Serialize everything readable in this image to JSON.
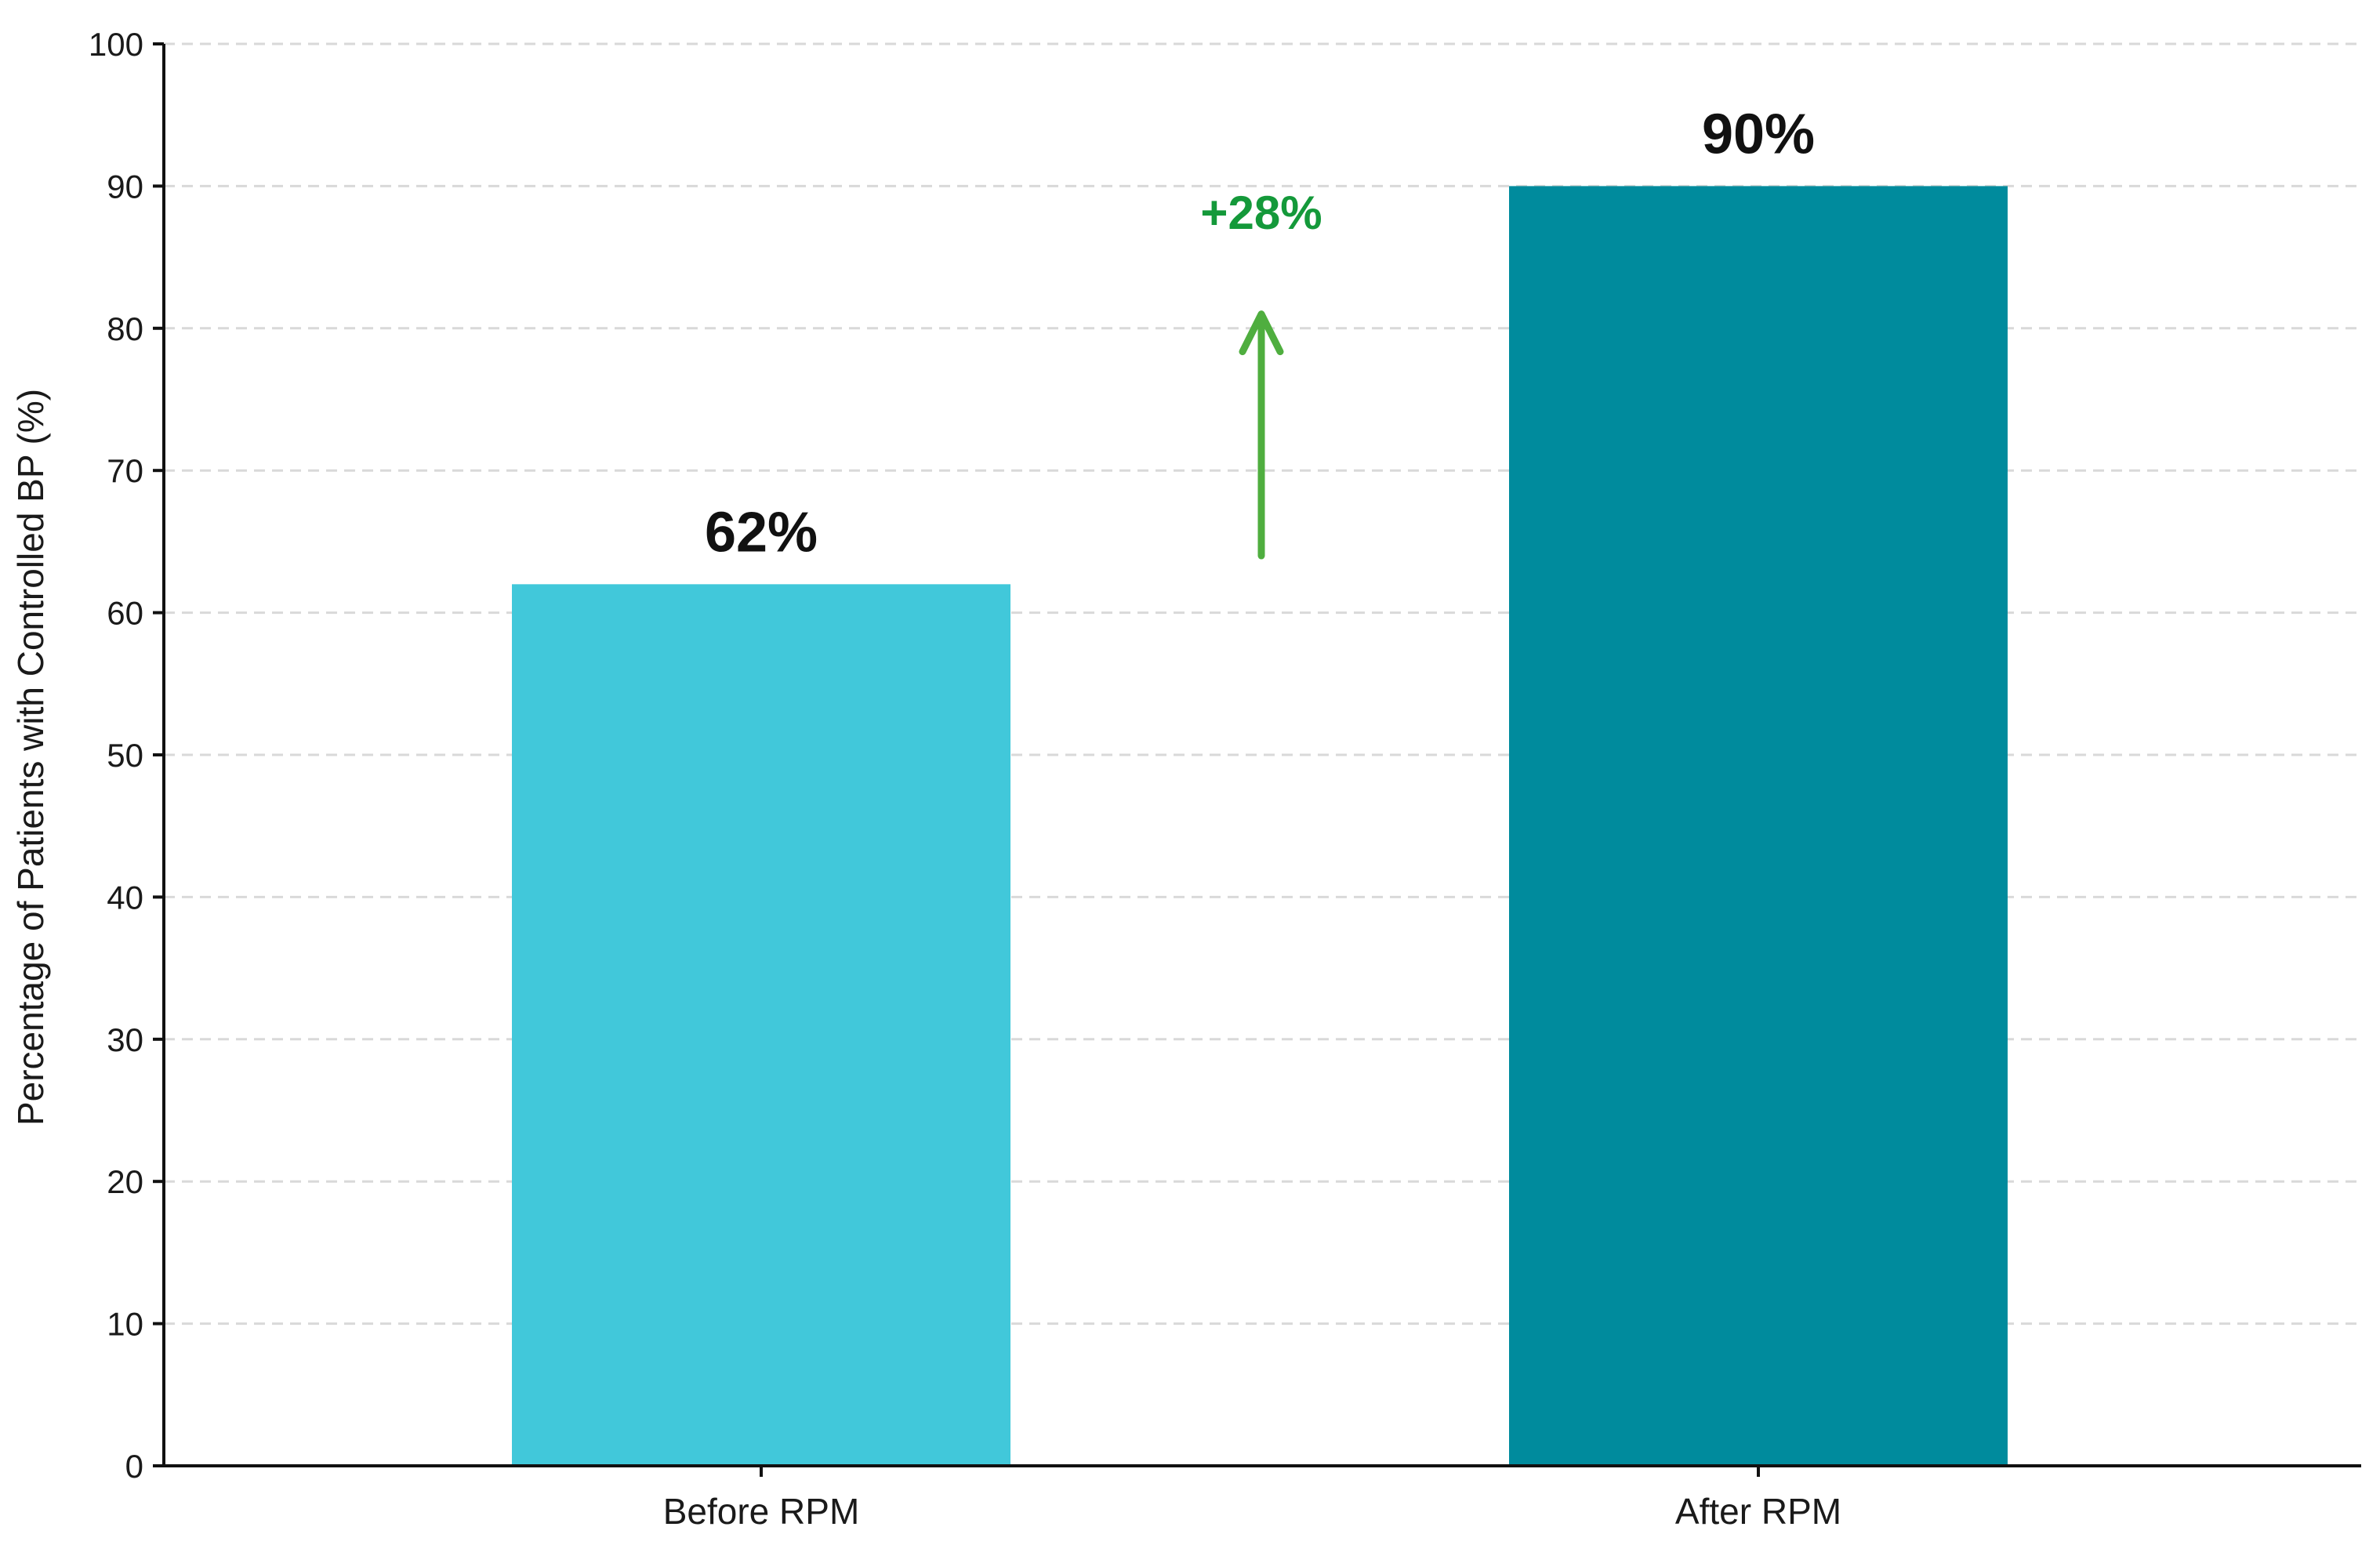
{
  "chart_data": {
    "type": "bar",
    "categories": [
      "Before RPM",
      "After RPM"
    ],
    "values": [
      62,
      90
    ],
    "data_labels": [
      "62%",
      "90%"
    ],
    "bar_colors": [
      "#41c8da",
      "#008b9d"
    ],
    "title": "",
    "xlabel": "",
    "ylabel": "Percentage of Patients with Controlled BP (%)",
    "ylim": [
      0,
      100
    ],
    "yticks": [
      0,
      10,
      20,
      30,
      40,
      50,
      60,
      70,
      80,
      90,
      100
    ],
    "grid": "horizontal dashed",
    "annotation": {
      "text": "+28%",
      "color": "#14993a",
      "arrow_color": "#4fae3f",
      "arrow_direction": "up",
      "arrow_from_value": 64,
      "arrow_to_value": 81
    }
  }
}
